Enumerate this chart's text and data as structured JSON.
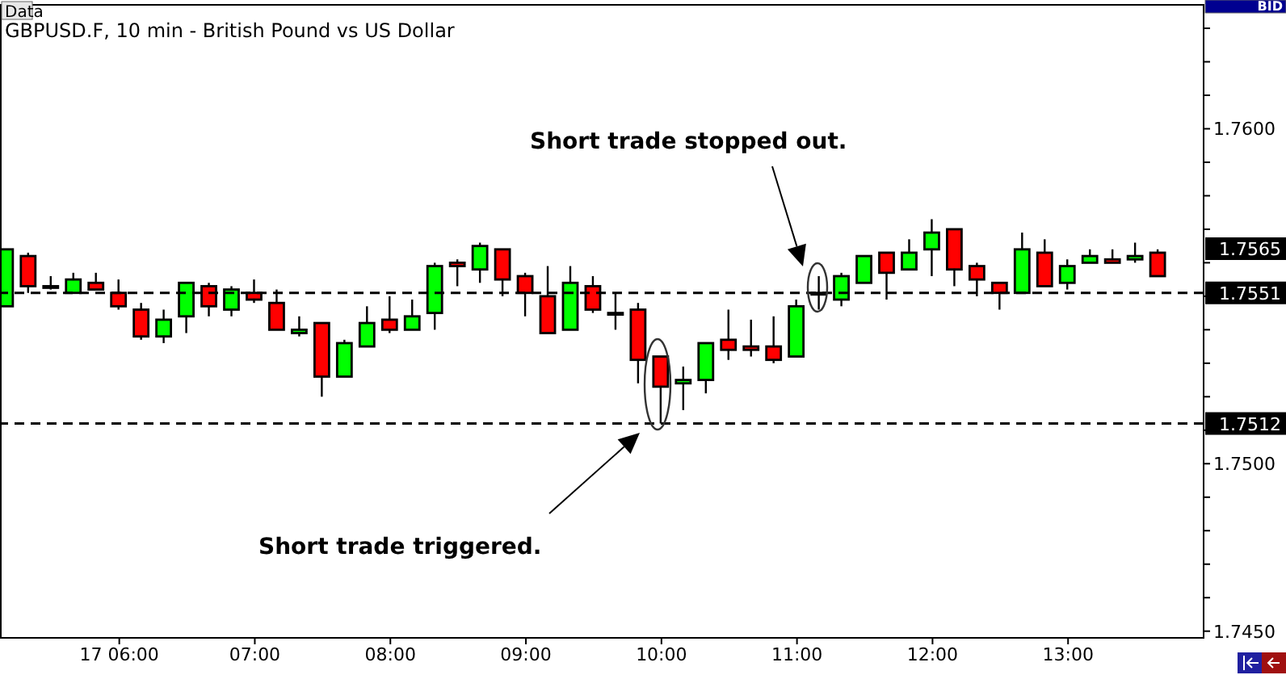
{
  "chart_data": {
    "type": "candlestick",
    "title": "GBPUSD.F, 10 min - British Pound vs US Dollar",
    "x": [
      5.1667,
      5.3333,
      5.5,
      5.6667,
      5.8333,
      6,
      6.1667,
      6.3333,
      6.5,
      6.6667,
      6.8333,
      7,
      7.1667,
      7.3333,
      7.5,
      7.6667,
      7.8333,
      8,
      8.1667,
      8.3333,
      8.5,
      8.6667,
      8.8333,
      9,
      9.1667,
      9.3333,
      9.5,
      9.6667,
      9.8333,
      10,
      10.1667,
      10.3333,
      10.5,
      10.6667,
      10.8333,
      11,
      11.1667,
      11.3333,
      11.5,
      11.6667,
      11.8333,
      12,
      12.1667,
      12.3333,
      12.5,
      12.6667,
      12.8333,
      13,
      13.1667,
      13.3333,
      13.5,
      13.6667
    ],
    "ohlc": [
      [
        1.7547,
        1.7564,
        1.7547,
        1.7564
      ],
      [
        1.7562,
        1.7563,
        1.7551,
        1.7553
      ],
      [
        1.7553,
        1.7556,
        1.7552,
        1.7553
      ],
      [
        1.7551,
        1.7557,
        1.7551,
        1.7555
      ],
      [
        1.7554,
        1.7557,
        1.7552,
        1.7552
      ],
      [
        1.7551,
        1.7555,
        1.7546,
        1.7547
      ],
      [
        1.7546,
        1.7548,
        1.7537,
        1.7538
      ],
      [
        1.7538,
        1.7546,
        1.7536,
        1.7543
      ],
      [
        1.7544,
        1.7554,
        1.7539,
        1.7554
      ],
      [
        1.7553,
        1.7554,
        1.7544,
        1.7547
      ],
      [
        1.7546,
        1.7553,
        1.7544,
        1.7552
      ],
      [
        1.7551,
        1.7555,
        1.7548,
        1.7549
      ],
      [
        1.7548,
        1.7552,
        1.754,
        1.754
      ],
      [
        1.7539,
        1.7544,
        1.7538,
        1.754
      ],
      [
        1.7542,
        1.7542,
        1.752,
        1.7526
      ],
      [
        1.7526,
        1.7537,
        1.7526,
        1.7536
      ],
      [
        1.7535,
        1.7547,
        1.7535,
        1.7542
      ],
      [
        1.7543,
        1.755,
        1.7539,
        1.754
      ],
      [
        1.754,
        1.7549,
        1.754,
        1.7544
      ],
      [
        1.7545,
        1.756,
        1.754,
        1.7559
      ],
      [
        1.756,
        1.7561,
        1.7553,
        1.7559
      ],
      [
        1.7558,
        1.7566,
        1.7554,
        1.7565
      ],
      [
        1.7564,
        1.7564,
        1.755,
        1.7555
      ],
      [
        1.7556,
        1.7557,
        1.7544,
        1.7551
      ],
      [
        1.755,
        1.7559,
        1.7539,
        1.7539
      ],
      [
        1.754,
        1.7559,
        1.754,
        1.7554
      ],
      [
        1.7553,
        1.7556,
        1.7545,
        1.7546
      ],
      [
        1.7545,
        1.7551,
        1.754,
        1.7545
      ],
      [
        1.7546,
        1.7548,
        1.7524,
        1.7531
      ],
      [
        1.7532,
        1.7532,
        1.7512,
        1.7523
      ],
      [
        1.7524,
        1.7529,
        1.7516,
        1.7525
      ],
      [
        1.7525,
        1.7536,
        1.7521,
        1.7536
      ],
      [
        1.7537,
        1.7546,
        1.7531,
        1.7534
      ],
      [
        1.7535,
        1.7543,
        1.7532,
        1.7534
      ],
      [
        1.7535,
        1.7544,
        1.753,
        1.7531
      ],
      [
        1.7532,
        1.7549,
        1.7532,
        1.7547
      ],
      [
        1.7551,
        1.7556,
        1.7546,
        1.7551
      ],
      [
        1.7549,
        1.7557,
        1.7547,
        1.7556
      ],
      [
        1.7554,
        1.7562,
        1.7554,
        1.7562
      ],
      [
        1.7563,
        1.7563,
        1.7549,
        1.7557
      ],
      [
        1.7558,
        1.7567,
        1.7558,
        1.7563
      ],
      [
        1.7564,
        1.7573,
        1.7556,
        1.7569
      ],
      [
        1.757,
        1.757,
        1.7553,
        1.7558
      ],
      [
        1.7559,
        1.756,
        1.755,
        1.7555
      ],
      [
        1.7554,
        1.7554,
        1.7546,
        1.7551
      ],
      [
        1.7551,
        1.7569,
        1.7551,
        1.7564
      ],
      [
        1.7563,
        1.7567,
        1.7553,
        1.7553
      ],
      [
        1.7554,
        1.7561,
        1.7552,
        1.7559
      ],
      [
        1.756,
        1.7564,
        1.756,
        1.7562
      ],
      [
        1.7561,
        1.7564,
        1.756,
        1.756
      ],
      [
        1.7561,
        1.7566,
        1.756,
        1.7562
      ],
      [
        1.7563,
        1.7564,
        1.7556,
        1.7556
      ]
    ],
    "colors": [
      "#00ff00",
      "#ff0000",
      "#ff0000",
      "#00ff00",
      "#ff0000",
      "#ff0000",
      "#ff0000",
      "#00ff00",
      "#00ff00",
      "#ff0000",
      "#00ff00",
      "#ff0000",
      "#ff0000",
      "#00ff00",
      "#ff0000",
      "#00ff00",
      "#00ff00",
      "#ff0000",
      "#00ff00",
      "#00ff00",
      "#ff0000",
      "#00ff00",
      "#ff0000",
      "#ff0000",
      "#ff0000",
      "#00ff00",
      "#ff0000",
      "#ff0000",
      "#ff0000",
      "#ff0000",
      "#00ff00",
      "#00ff00",
      "#ff0000",
      "#ff0000",
      "#ff0000",
      "#00ff00",
      "#ff0000",
      "#00ff00",
      "#00ff00",
      "#ff0000",
      "#00ff00",
      "#00ff00",
      "#ff0000",
      "#ff0000",
      "#ff0000",
      "#00ff00",
      "#ff0000",
      "#00ff00",
      "#00ff00",
      "#ff0000",
      "#00ff00",
      "#ff0000"
    ],
    "xlim": [
      5.12,
      14.0
    ],
    "xticks": [
      {
        "value": 6,
        "label": "17 06:00"
      },
      {
        "value": 7,
        "label": "07:00"
      },
      {
        "value": 8,
        "label": "08:00"
      },
      {
        "value": 9,
        "label": "09:00"
      },
      {
        "value": 10,
        "label": "10:00"
      },
      {
        "value": 11,
        "label": "11:00"
      },
      {
        "value": 12,
        "label": "12:00"
      },
      {
        "value": 13,
        "label": "13:00"
      }
    ],
    "ylim": [
      1.7448,
      1.7637
    ],
    "yticks": [
      {
        "value": 1.745,
        "label": "1.7450"
      },
      {
        "value": 1.746,
        "label": null
      },
      {
        "value": 1.747,
        "label": null
      },
      {
        "value": 1.748,
        "label": null
      },
      {
        "value": 1.749,
        "label": null
      },
      {
        "value": 1.75,
        "label": "1.7500"
      },
      {
        "value": 1.751,
        "label": null
      },
      {
        "value": 1.752,
        "label": null
      },
      {
        "value": 1.753,
        "label": null
      },
      {
        "value": 1.754,
        "label": null
      },
      {
        "value": 1.755,
        "label": null
      },
      {
        "value": 1.756,
        "label": null
      },
      {
        "value": 1.757,
        "label": null
      },
      {
        "value": 1.758,
        "label": null
      },
      {
        "value": 1.759,
        "label": null
      },
      {
        "value": 1.76,
        "label": "1.7600"
      },
      {
        "value": 1.761,
        "label": null
      },
      {
        "value": 1.762,
        "label": null
      },
      {
        "value": 1.763,
        "label": null
      }
    ],
    "ref_lines": [
      {
        "axis": "y",
        "value": 1.7551,
        "label": "1.7551",
        "line_style": "dashed",
        "color": "#000000"
      },
      {
        "axis": "y",
        "value": 1.7512,
        "label": "1.7512",
        "line_style": "dashed",
        "color": "#000000"
      }
    ],
    "annotations": [
      "Data",
      "BID",
      "1.7565",
      "Short trade stopped out.",
      "Short trade triggered."
    ]
  }
}
